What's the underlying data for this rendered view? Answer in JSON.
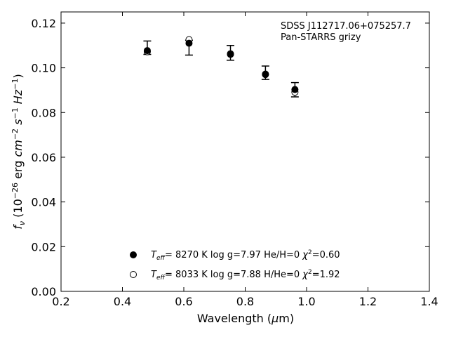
{
  "chart_data": {
    "type": "scatter",
    "title": "",
    "xlabel": "Wavelength (μm)",
    "ylabel": "f_ν (10^-26 erg cm^-2 s^-1 Hz^-1)",
    "xlim": [
      0.2,
      1.4
    ],
    "ylim": [
      0.0,
      0.125
    ],
    "xticks": [
      "0.2",
      "0.4",
      "0.6",
      "0.8",
      "1.0",
      "1.2",
      "1.4"
    ],
    "yticks": [
      "0.00",
      "0.02",
      "0.04",
      "0.06",
      "0.08",
      "0.10",
      "0.12"
    ],
    "grid": false,
    "annotation_lines": [
      "SDSS J112717.06+075257.7",
      "Pan-STARRS grizy"
    ],
    "observed": {
      "x": [
        0.481,
        0.617,
        0.752,
        0.866,
        0.962
      ],
      "y": [
        0.109,
        0.109,
        0.1067,
        0.0978,
        0.0902
      ],
      "yerr": [
        0.003,
        0.0033,
        0.0033,
        0.003,
        0.0032
      ]
    },
    "series": [
      {
        "name": "T_eff= 8270 K  log g=7.97  He/H=0  χ²=0.60",
        "marker": "filled-circle",
        "x": [
          0.481,
          0.617,
          0.752,
          0.866,
          0.962
        ],
        "y": [
          0.1077,
          0.111,
          0.106,
          0.0972,
          0.0903
        ]
      },
      {
        "name": "T_eff= 8033 K  log g=7.88  H/He=0  χ²=1.92",
        "marker": "open-circle",
        "x": [
          0.481,
          0.617,
          0.752,
          0.866,
          0.962
        ],
        "y": [
          0.1072,
          0.1126,
          0.1063,
          0.097,
          0.0891
        ]
      }
    ],
    "legend_position": "lower-center"
  }
}
